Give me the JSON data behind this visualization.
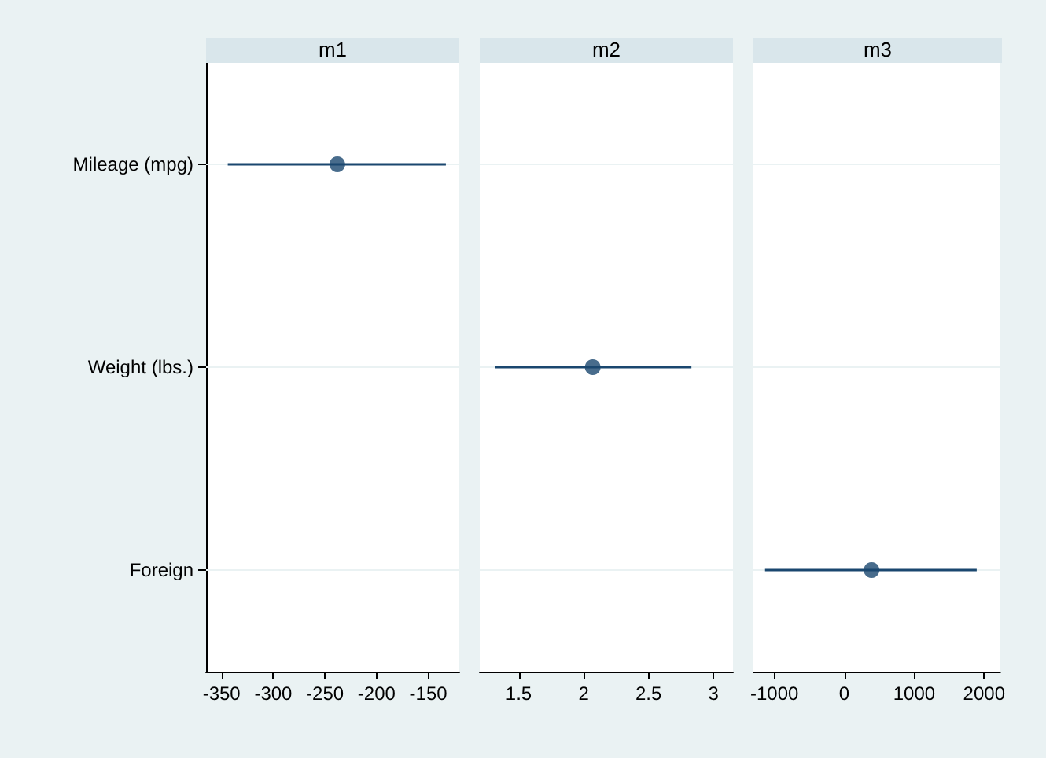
{
  "chart_data": [
    {
      "type": "scatter",
      "orientation": "horizontal",
      "title": "m1",
      "categories": [
        "Mileage (mpg)",
        "Weight (lbs.)",
        "Foreign"
      ],
      "color": "#1a476f",
      "values": [
        -238,
        null,
        null
      ],
      "errors": [
        [
          -344,
          -133
        ],
        null,
        null
      ],
      "xlim": [
        -365,
        -120
      ],
      "xticks": [
        -350,
        -300,
        -250,
        -200,
        -150
      ],
      "grid": "y",
      "marker": "circle"
    },
    {
      "type": "scatter",
      "orientation": "horizontal",
      "title": "m2",
      "categories": [
        null,
        null,
        null
      ],
      "color": "#1a476f",
      "values": [
        null,
        2.07,
        null
      ],
      "errors": [
        null,
        [
          1.32,
          2.83
        ],
        null
      ],
      "xlim": [
        1.2,
        3.15
      ],
      "xticks": [
        1.5,
        2,
        2.5,
        3
      ],
      "grid": "y",
      "marker": "circle",
      "tick_labels": "x"
    },
    {
      "type": "scatter",
      "orientation": "horizontal",
      "title": "m3",
      "categories": [
        null,
        null,
        null
      ],
      "color": "#1a476f",
      "values": [
        null,
        null,
        390
      ],
      "errors": [
        null,
        null,
        [
          -1134,
          1894
        ]
      ],
      "xlim": [
        -1300,
        2230
      ],
      "xticks": [
        -1000,
        0,
        1000,
        2000
      ],
      "grid": "y",
      "marker": "circle",
      "tick_labels": "x"
    }
  ]
}
